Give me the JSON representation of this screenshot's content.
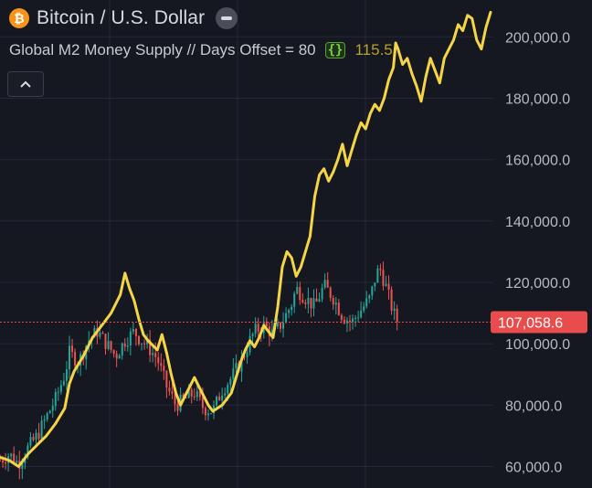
{
  "header": {
    "symbol_icon": "bitcoin-icon",
    "title": "Bitcoin / U.S. Dollar",
    "collapse_icon": "minus-icon"
  },
  "indicator": {
    "label": "Global M2 Money Supply // Days Offset = 80",
    "icon": "code-braces-icon",
    "value": "115.5"
  },
  "controls": {
    "toggle_icon": "chevron-up-icon"
  },
  "colors": {
    "background": "#151820",
    "up_candle": "#26a69a",
    "down_candle": "#ef5350",
    "m2_line": "#f5d547",
    "price_line": "#e84c4c",
    "grid": "#242833"
  },
  "chart_data": {
    "type": "line",
    "y_axis": {
      "position": "right",
      "ticks": [
        "200,000.0",
        "180,000.0",
        "160,000.0",
        "140,000.0",
        "120,000.0",
        "100,000.0",
        "80,000.0",
        "60,000.0"
      ],
      "tick_values": [
        200000,
        180000,
        160000,
        140000,
        120000,
        100000,
        80000,
        60000
      ],
      "range": [
        53000,
        212000
      ]
    },
    "grid": true,
    "current_price": {
      "value": 107058.6,
      "label": "107,058.6"
    },
    "series": [
      {
        "kind": "candlestick",
        "points": [
          [
            0,
            62000
          ],
          [
            4,
            64000
          ],
          [
            8,
            61000
          ],
          [
            12,
            66000
          ],
          [
            16,
            70000
          ],
          [
            20,
            76000
          ],
          [
            24,
            82000
          ],
          [
            28,
            90000
          ],
          [
            30,
            97000
          ],
          [
            34,
            94000
          ],
          [
            38,
            101000
          ],
          [
            42,
            104000
          ],
          [
            46,
            100000
          ],
          [
            50,
            96000
          ],
          [
            54,
            101000
          ],
          [
            58,
            104000
          ],
          [
            60,
            102000
          ],
          [
            64,
            99000
          ],
          [
            68,
            95000
          ],
          [
            72,
            86000
          ],
          [
            76,
            80000
          ],
          [
            80,
            82000
          ],
          [
            84,
            84000
          ],
          [
            88,
            79000
          ],
          [
            92,
            78000
          ],
          [
            96,
            85000
          ],
          [
            100,
            89000
          ],
          [
            104,
            94000
          ],
          [
            108,
            101000
          ],
          [
            110,
            104000
          ],
          [
            114,
            106000
          ],
          [
            118,
            103000
          ],
          [
            122,
            107000
          ],
          [
            126,
            113000
          ],
          [
            128,
            118000
          ],
          [
            132,
            115000
          ],
          [
            136,
            112000
          ],
          [
            140,
            119000
          ],
          [
            144,
            115000
          ],
          [
            148,
            109000
          ],
          [
            152,
            107000
          ],
          [
            156,
            111000
          ],
          [
            160,
            115000
          ],
          [
            162,
            121000
          ],
          [
            164,
            125000
          ],
          [
            167,
            118000
          ],
          [
            170,
            110000
          ],
          [
            172,
            107000
          ]
        ]
      },
      {
        "kind": "line",
        "points": [
          [
            0,
            63000
          ],
          [
            4,
            62000
          ],
          [
            8,
            60000
          ],
          [
            12,
            64000
          ],
          [
            16,
            67000
          ],
          [
            20,
            70000
          ],
          [
            24,
            74000
          ],
          [
            28,
            79000
          ],
          [
            30,
            87000
          ],
          [
            32,
            91000
          ],
          [
            36,
            96000
          ],
          [
            40,
            102000
          ],
          [
            44,
            106000
          ],
          [
            48,
            110000
          ],
          [
            52,
            116000
          ],
          [
            54,
            123000
          ],
          [
            56,
            118000
          ],
          [
            58,
            114000
          ],
          [
            60,
            108000
          ],
          [
            62,
            103000
          ],
          [
            64,
            101000
          ],
          [
            68,
            98000
          ],
          [
            70,
            103000
          ],
          [
            72,
            97000
          ],
          [
            74,
            90000
          ],
          [
            76,
            84000
          ],
          [
            78,
            80000
          ],
          [
            80,
            83000
          ],
          [
            82,
            86000
          ],
          [
            84,
            89000
          ],
          [
            86,
            86000
          ],
          [
            88,
            83000
          ],
          [
            90,
            80000
          ],
          [
            92,
            78000
          ],
          [
            96,
            80000
          ],
          [
            100,
            84000
          ],
          [
            102,
            89000
          ],
          [
            104,
            94000
          ],
          [
            106,
            98000
          ],
          [
            108,
            101000
          ],
          [
            110,
            99000
          ],
          [
            112,
            102000
          ],
          [
            114,
            106000
          ],
          [
            116,
            104000
          ],
          [
            118,
            102000
          ],
          [
            120,
            112000
          ],
          [
            122,
            125000
          ],
          [
            124,
            130000
          ],
          [
            126,
            128000
          ],
          [
            128,
            122000
          ],
          [
            130,
            125000
          ],
          [
            134,
            135000
          ],
          [
            136,
            148000
          ],
          [
            138,
            155000
          ],
          [
            140,
            157000
          ],
          [
            142,
            153000
          ],
          [
            144,
            156000
          ],
          [
            146,
            160000
          ],
          [
            148,
            165000
          ],
          [
            150,
            158000
          ],
          [
            152,
            163000
          ],
          [
            154,
            168000
          ],
          [
            156,
            172000
          ],
          [
            158,
            170000
          ],
          [
            160,
            175000
          ],
          [
            162,
            178000
          ],
          [
            164,
            176000
          ],
          [
            166,
            180000
          ],
          [
            168,
            186000
          ],
          [
            170,
            190000
          ],
          [
            171,
            198000
          ],
          [
            172,
            196000
          ],
          [
            174,
            191000
          ],
          [
            176,
            193000
          ],
          [
            178,
            188000
          ],
          [
            180,
            184000
          ],
          [
            182,
            179000
          ],
          [
            184,
            187000
          ],
          [
            186,
            193000
          ],
          [
            188,
            189000
          ],
          [
            190,
            185000
          ],
          [
            192,
            193000
          ],
          [
            194,
            196000
          ],
          [
            196,
            199000
          ],
          [
            198,
            204000
          ],
          [
            200,
            202000
          ],
          [
            202,
            207000
          ],
          [
            204,
            206000
          ],
          [
            206,
            199000
          ],
          [
            208,
            196000
          ],
          [
            210,
            203000
          ],
          [
            212,
            208000
          ]
        ]
      }
    ]
  }
}
